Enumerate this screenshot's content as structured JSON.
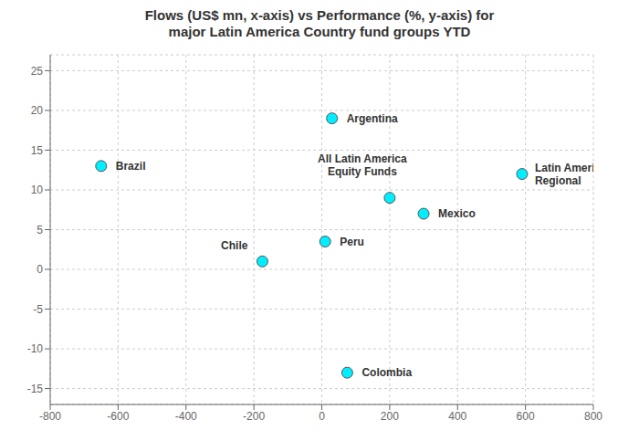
{
  "chart_data": {
    "type": "scatter",
    "title": "Flows (US$ mn, x-axis) vs Performance (%, y-axis) for\nmajor Latin America Country fund groups YTD",
    "x": [
      30,
      -650,
      -175,
      10,
      300,
      200,
      590,
      75
    ],
    "values": [
      19,
      13,
      1,
      3.5,
      7,
      9,
      12,
      -13
    ],
    "labels": [
      "Argentina",
      "Brazil",
      "Chile",
      "Peru",
      "Mexico",
      "All Latin America\nEquity Funds",
      "Latin America\nRegional",
      "Colombia"
    ],
    "color": "#00EEFF",
    "xlim": [
      -800,
      800
    ],
    "ylim": [
      -17,
      27
    ],
    "xticks": [
      -800,
      -600,
      -400,
      -200,
      0,
      200,
      400,
      600,
      800
    ],
    "yticks": [
      -15,
      -10,
      -5,
      0,
      5,
      10,
      15,
      20,
      25
    ],
    "grid": true
  }
}
